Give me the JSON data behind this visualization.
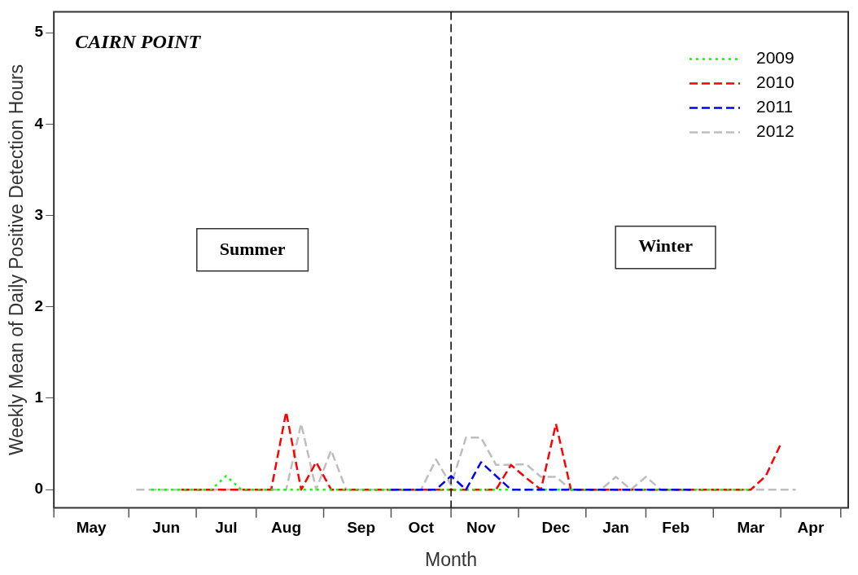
{
  "chart_data": {
    "type": "line",
    "title": "CAIRN POINT",
    "xlabel": "Month",
    "ylabel": "Weekly Mean of Daily Positive Detection Hours",
    "annotations": [
      "Summer",
      "Winter"
    ],
    "categories": [
      null,
      null,
      "May",
      null,
      null,
      null,
      null,
      "Jun",
      null,
      null,
      null,
      "Jul",
      null,
      null,
      null,
      "Aug",
      null,
      null,
      null,
      null,
      "Sep",
      null,
      null,
      null,
      "Oct",
      null,
      null,
      null,
      "Nov",
      null,
      null,
      null,
      null,
      "Dec",
      null,
      null,
      null,
      "Jan",
      null,
      null,
      null,
      "Feb",
      null,
      null,
      null,
      null,
      "Mar",
      null,
      null,
      null,
      "Apr",
      null,
      null
    ],
    "ylim": [
      -0.2,
      5.23
    ],
    "yticks": [
      0,
      1,
      2,
      3,
      4,
      5
    ],
    "legend": "top right",
    "marker": "none",
    "series": [
      {
        "name": "2009",
        "color": "#00ff00",
        "line_style": "dotted",
        "values": [
          null,
          null,
          null,
          null,
          null,
          null,
          0,
          0,
          0,
          0,
          0,
          0.15,
          0,
          0,
          0,
          0,
          0,
          0,
          0,
          0,
          0,
          0,
          0,
          0,
          0,
          0,
          0,
          0,
          0,
          0,
          0,
          0,
          0,
          0,
          0,
          0,
          0,
          0,
          0,
          0,
          0,
          0,
          0,
          0,
          0,
          0,
          0,
          null,
          null,
          null,
          null,
          null,
          null
        ]
      },
      {
        "name": "2010",
        "color": "#ff0000",
        "line_style": "dashed",
        "values": [
          null,
          null,
          null,
          null,
          null,
          null,
          null,
          null,
          0,
          0,
          0,
          0,
          0,
          0,
          0,
          0.85,
          0,
          0.3,
          0,
          0,
          0,
          0,
          0,
          0,
          0,
          0,
          0,
          0,
          0,
          0,
          0.27,
          0.13,
          0,
          0.72,
          0,
          0,
          0,
          0,
          0,
          0,
          0,
          0,
          0,
          0,
          0,
          0,
          0,
          0.15,
          0.5,
          null,
          null,
          null,
          null
        ]
      },
      {
        "name": "2011",
        "color": "#0000ff",
        "line_style": "dashed",
        "values": [
          null,
          null,
          null,
          null,
          null,
          null,
          null,
          null,
          null,
          null,
          null,
          null,
          null,
          null,
          null,
          null,
          null,
          null,
          null,
          null,
          null,
          null,
          0,
          0,
          0,
          0,
          0.15,
          0,
          0.3,
          0.15,
          0,
          0,
          0,
          0,
          0,
          0,
          0,
          0,
          0,
          0,
          0,
          0,
          0,
          null,
          null,
          null,
          null,
          null,
          null,
          null,
          null,
          null,
          null
        ]
      },
      {
        "name": "2012",
        "color": "#bebebe",
        "line_style": "dashed",
        "values": [
          null,
          null,
          null,
          null,
          null,
          0,
          0,
          0,
          0,
          0,
          0,
          0,
          0,
          0,
          0,
          0,
          0.72,
          0,
          0.43,
          0,
          0,
          0,
          0,
          0,
          0,
          0.33,
          0.05,
          0.57,
          0.57,
          0.27,
          0.27,
          0.28,
          0.14,
          0.14,
          0,
          0,
          0,
          0.14,
          0,
          0.14,
          0,
          0,
          0,
          0,
          0,
          0,
          0,
          0,
          0,
          0,
          null,
          null,
          null
        ]
      }
    ]
  }
}
